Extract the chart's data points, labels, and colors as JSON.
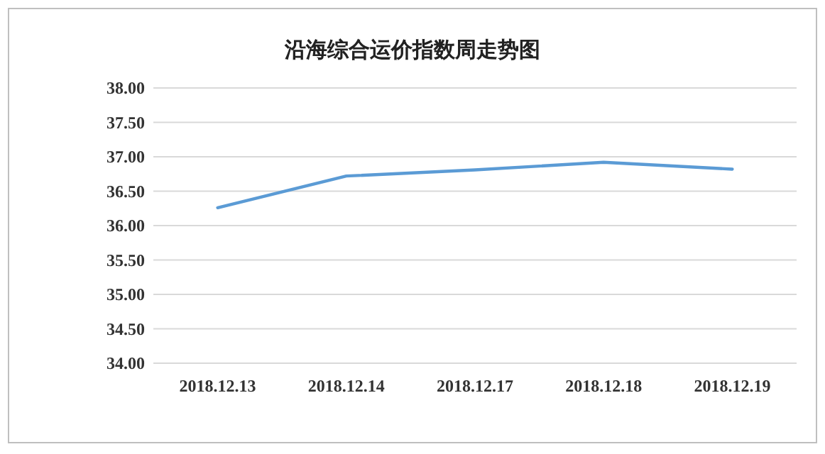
{
  "chart_data": {
    "type": "line",
    "title": "沿海综合运价指数周走势图",
    "categories": [
      "2018.12.13",
      "2018.12.14",
      "2018.12.17",
      "2018.12.18",
      "2018.12.19"
    ],
    "series": [
      {
        "color": "#5b9bd5",
        "values": [
          36.26,
          36.72,
          36.81,
          36.92,
          36.82
        ]
      }
    ],
    "ylim": [
      34,
      38
    ],
    "yticks": [
      {
        "value": 34,
        "label": "34.00"
      },
      {
        "value": 34.5,
        "label": "34.50"
      },
      {
        "value": 35,
        "label": "35.00"
      },
      {
        "value": 35.5,
        "label": "35.50"
      },
      {
        "value": 36,
        "label": "36.00"
      },
      {
        "value": 36.5,
        "label": "36.50"
      },
      {
        "value": 37,
        "label": "37.00"
      },
      {
        "value": 37.5,
        "label": "37.50"
      },
      {
        "value": 38,
        "label": "38.00"
      }
    ],
    "grid": "y",
    "marker": "none",
    "line_style": "solid"
  }
}
